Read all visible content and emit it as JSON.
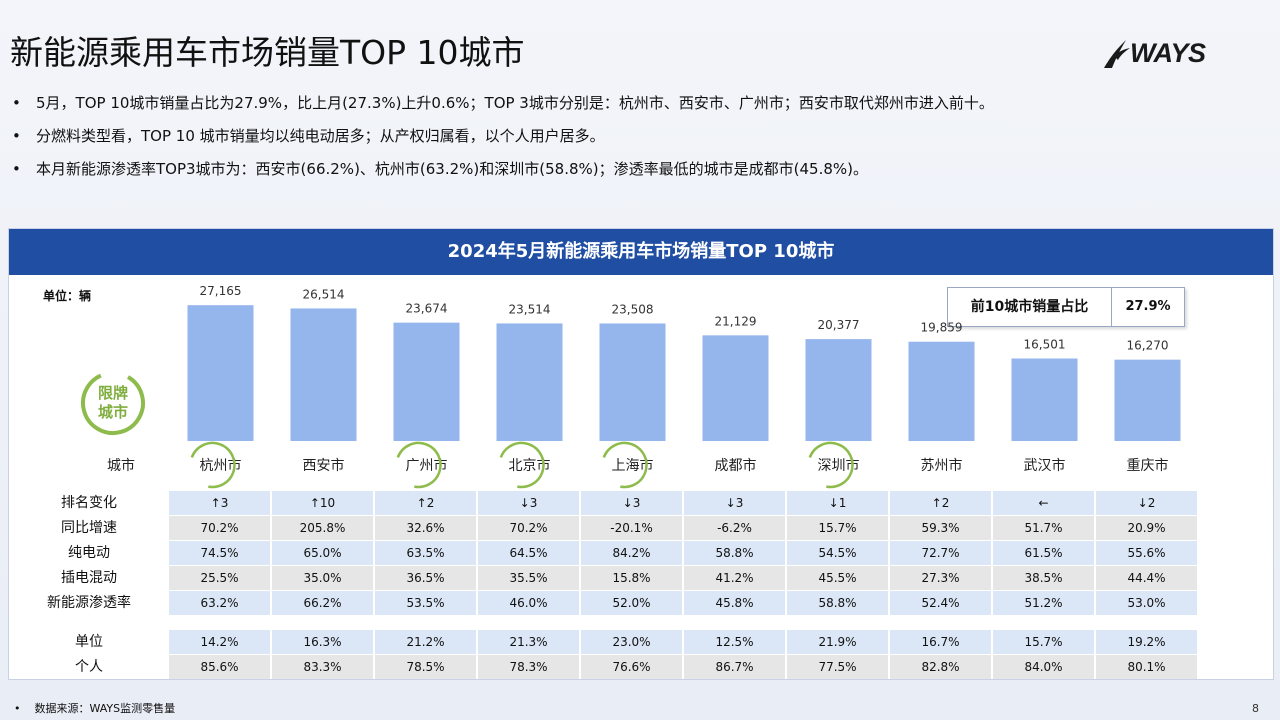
{
  "title": "新能源乘用车市场销量TOP 10城市",
  "logo_text": "WAYS",
  "bullets": [
    "5月，TOP 10城市销量占比为27.9%，比上月(27.3%)上升0.6%；TOP 3城市分别是：杭州市、西安市、广州市；西安市取代郑州市进入前十。",
    "分燃料类型看，TOP 10 城市销量均以纯电动居多；从产权归属看，以个人用户居多。",
    "本月新能源渗透率TOP3城市为：西安市(66.2%)、杭州市(63.2%)和深圳市(58.8%)；渗透率最低的城市是成都市(45.8%)。"
  ],
  "panel_title": "2024年5月新能源乘用车市场销量TOP  10城市",
  "unit_label": "单位：辆",
  "share": {
    "label": "前10城市销量占比",
    "value": "27.9%"
  },
  "limit_badge": [
    "限牌",
    "城市"
  ],
  "city_row_label": "城市",
  "colors": {
    "bar": "#95b6ec",
    "header": "#1f4ea3",
    "ring": "#8dbb4c"
  },
  "chart_data": {
    "type": "bar",
    "categories": [
      "杭州市",
      "西安市",
      "广州市",
      "北京市",
      "上海市",
      "成都市",
      "深圳市",
      "苏州市",
      "武汉市",
      "重庆市"
    ],
    "values": [
      27165,
      26514,
      23674,
      23514,
      23508,
      21129,
      20377,
      19859,
      16501,
      16270
    ],
    "value_labels": [
      "27,165",
      "26,514",
      "23,674",
      "23,514",
      "23,508",
      "21,129",
      "20,377",
      "19,859",
      "16,501",
      "16,270"
    ],
    "ylabel": "单位：辆",
    "ylim": [
      0,
      30000
    ],
    "limited_cities": [
      "杭州市",
      "广州市",
      "北京市",
      "上海市",
      "深圳市"
    ]
  },
  "table": {
    "rows": [
      {
        "label": "排名变化",
        "style": "blue",
        "cells": [
          "↑3",
          "↑10",
          "↑2",
          "↓3",
          "↓3",
          "↓3",
          "↓1",
          "↑2",
          "←",
          "↓2"
        ]
      },
      {
        "label": "同比增速",
        "style": "gray",
        "cells": [
          "70.2%",
          "205.8%",
          "32.6%",
          "70.2%",
          "-20.1%",
          "-6.2%",
          "15.7%",
          "59.3%",
          "51.7%",
          "20.9%"
        ]
      },
      {
        "label": "纯电动",
        "style": "blue",
        "cells": [
          "74.5%",
          "65.0%",
          "63.5%",
          "64.5%",
          "84.2%",
          "58.8%",
          "54.5%",
          "72.7%",
          "61.5%",
          "55.6%"
        ]
      },
      {
        "label": "插电混动",
        "style": "gray",
        "cells": [
          "25.5%",
          "35.0%",
          "36.5%",
          "35.5%",
          "15.8%",
          "41.2%",
          "45.5%",
          "27.3%",
          "38.5%",
          "44.4%"
        ]
      },
      {
        "label": "新能源渗透率",
        "style": "blue",
        "cells": [
          "63.2%",
          "66.2%",
          "53.5%",
          "46.0%",
          "52.0%",
          "45.8%",
          "58.8%",
          "52.4%",
          "51.2%",
          "53.0%"
        ]
      },
      {
        "label": "单位",
        "style": "blue",
        "cells": [
          "14.2%",
          "16.3%",
          "21.2%",
          "21.3%",
          "23.0%",
          "12.5%",
          "21.9%",
          "16.7%",
          "15.7%",
          "19.2%"
        ]
      },
      {
        "label": "个人",
        "style": "gray",
        "cells": [
          "85.6%",
          "83.3%",
          "78.5%",
          "78.3%",
          "76.6%",
          "86.7%",
          "77.5%",
          "82.8%",
          "84.0%",
          "80.1%"
        ]
      }
    ]
  },
  "footer": "数据来源：WAYS监测零售量",
  "page_number": "8"
}
